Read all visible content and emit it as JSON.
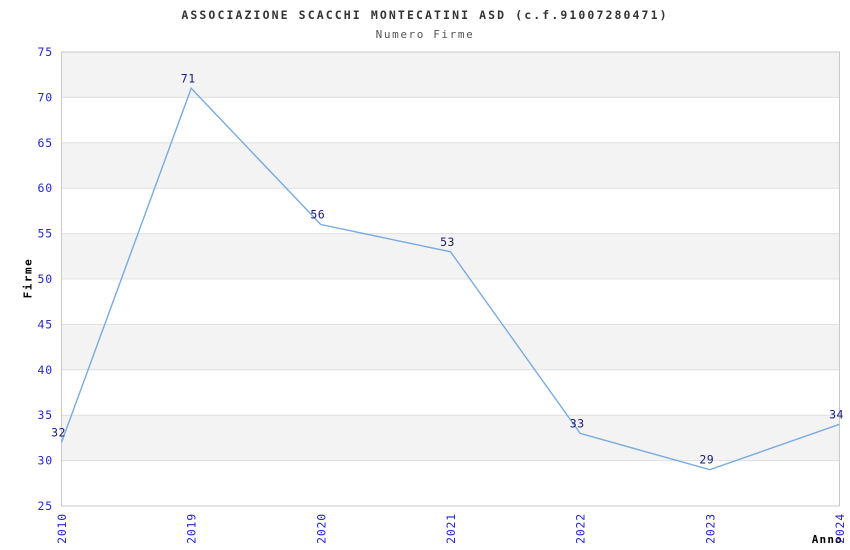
{
  "chart_data": {
    "type": "line",
    "title": "ASSOCIAZIONE SCACCHI MONTECATINI ASD (c.f.91007280471)",
    "subtitle": "Numero Firme",
    "xlabel": "Anno",
    "ylabel": "Firme",
    "categories": [
      "2010",
      "2019",
      "2020",
      "2021",
      "2022",
      "2023",
      "2024"
    ],
    "values": [
      32,
      71,
      56,
      53,
      33,
      29,
      34
    ],
    "ylim": [
      25,
      75
    ],
    "yticks": [
      25,
      30,
      35,
      40,
      45,
      50,
      55,
      60,
      65,
      70,
      75
    ],
    "grid": "horizontal-gridlines-with-alternating-bands",
    "legend": "none",
    "markers": "none",
    "data_labels_shown": true,
    "colors": {
      "line": "#79abdf",
      "tick_labels": "#2626cf",
      "data_labels": "#1a1a78",
      "band": "#f3f3f3",
      "gridline": "#e0e0e0",
      "border": "#c9c9c9",
      "title": "#333333",
      "subtitle": "#555555",
      "axis_labels": "#000000",
      "background": "#ffffff"
    }
  }
}
